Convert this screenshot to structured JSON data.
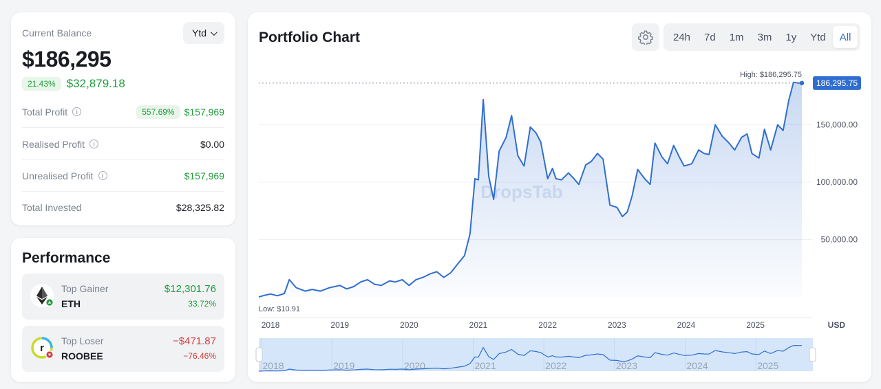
{
  "balance": {
    "label": "Current Balance",
    "range": "Ytd",
    "value": "$186,295",
    "change_pct": "21.43%",
    "change_amt": "$32,879.18",
    "rows": [
      {
        "label": "Total Profit",
        "pct": "557.69%",
        "value": "$157,969",
        "info": true
      },
      {
        "label": "Realised Profit",
        "pct": "",
        "value": "$0.00",
        "info": true
      },
      {
        "label": "Unrealised Profit",
        "pct": "",
        "value": "$157,969",
        "info": true
      },
      {
        "label": "Total Invested",
        "pct": "",
        "value": "$28,325.82",
        "info": false
      }
    ]
  },
  "performance": {
    "title": "Performance",
    "gainer": {
      "kind": "Top Gainer",
      "symbol": "ETH",
      "amount": "$12,301.76",
      "pct": "33.72%",
      "icon": "ethereum-icon"
    },
    "loser": {
      "kind": "Top Loser",
      "symbol": "ROOBEE",
      "amount": "−$471.87",
      "pct": "−76.46%",
      "icon": "roobee-icon"
    }
  },
  "chart": {
    "title": "Portfolio Chart",
    "ranges": [
      "24h",
      "7d",
      "1m",
      "3m",
      "1y",
      "Ytd",
      "All"
    ],
    "active_range": "All",
    "watermark": "DropsTab",
    "high_label": "High: $186,295.75",
    "low_label": "Low: $10.91",
    "current_label": "186,295.75",
    "currency": "USD",
    "accent": "#2f6ecf"
  },
  "chart_data": {
    "type": "area",
    "title": "Portfolio Chart",
    "x_ticks": [
      "2018",
      "2019",
      "2020",
      "2021",
      "2022",
      "2023",
      "2024",
      "2025"
    ],
    "y_ticks": [
      "50,000.00",
      "100,000.00",
      "150,000.00"
    ],
    "ylim": [
      0,
      200000
    ],
    "xlim": [
      2017.83,
      2025.67
    ],
    "series": [
      {
        "x": [
          2017.83,
          2017.92,
          2018.0,
          2018.1,
          2018.2,
          2018.27,
          2018.37,
          2018.5,
          2018.6,
          2018.72,
          2018.85,
          2019.0,
          2019.1,
          2019.2,
          2019.3,
          2019.4,
          2019.5,
          2019.6,
          2019.72,
          2019.8,
          2019.9,
          2020.0,
          2020.1,
          2020.2,
          2020.3,
          2020.4,
          2020.5,
          2020.6,
          2020.72,
          2020.8,
          2020.88,
          2020.95,
          2021.0,
          2021.07,
          2021.15,
          2021.22,
          2021.3,
          2021.4,
          2021.48,
          2021.57,
          2021.66,
          2021.75,
          2021.83,
          2021.9,
          2022.0,
          2022.07,
          2022.12,
          2022.2,
          2022.3,
          2022.38,
          2022.45,
          2022.55,
          2022.63,
          2022.72,
          2022.8,
          2022.9,
          2023.0,
          2023.08,
          2023.15,
          2023.22,
          2023.3,
          2023.4,
          2023.48,
          2023.55,
          2023.65,
          2023.73,
          2023.82,
          2023.9,
          2023.97,
          2024.08,
          2024.18,
          2024.26,
          2024.33,
          2024.42,
          2024.52,
          2024.62,
          2024.7,
          2024.8,
          2024.88,
          2024.95,
          2025.05,
          2025.13,
          2025.22,
          2025.32,
          2025.4,
          2025.48,
          2025.55,
          2025.62,
          2025.67
        ],
        "y": [
          10.91,
          1500,
          2500,
          1000,
          3000,
          15000,
          8000,
          5000,
          6500,
          5000,
          8000,
          10000,
          7000,
          9000,
          13000,
          15000,
          11000,
          10000,
          14000,
          13000,
          15000,
          10000,
          15000,
          17000,
          20000,
          22000,
          17000,
          21000,
          30000,
          36000,
          55000,
          103000,
          102000,
          172000,
          105000,
          85000,
          127000,
          139000,
          158000,
          123000,
          114000,
          148000,
          143000,
          135000,
          103000,
          112000,
          103000,
          102000,
          108000,
          103000,
          98000,
          115000,
          118000,
          125000,
          120000,
          80000,
          78000,
          70000,
          74000,
          88000,
          111000,
          103000,
          98000,
          134000,
          122000,
          116000,
          132000,
          122000,
          114000,
          116000,
          128000,
          125000,
          124000,
          150000,
          140000,
          134000,
          128000,
          139000,
          142000,
          125000,
          121000,
          146000,
          128000,
          150000,
          145000,
          171000,
          187000,
          186295.75,
          186295.75
        ]
      }
    ],
    "high": 186295.75,
    "low": 10.91
  }
}
